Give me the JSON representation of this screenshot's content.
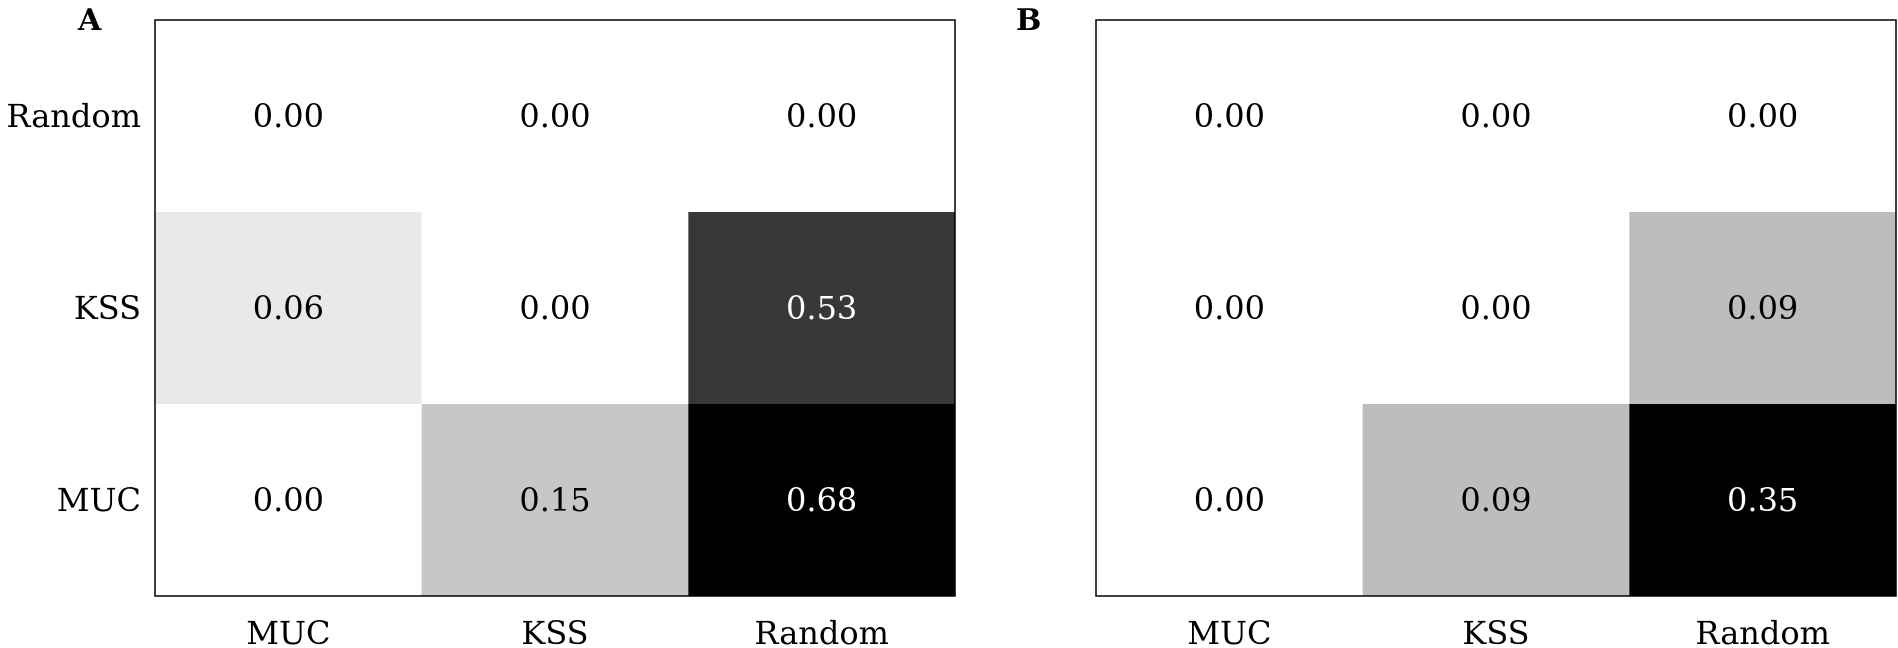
{
  "chart_data": [
    {
      "type": "heatmap",
      "panel_label": "A",
      "x_categories": [
        "MUC",
        "KSS",
        "Random"
      ],
      "y_categories": [
        "Random",
        "KSS",
        "MUC"
      ],
      "values": [
        [
          0.0,
          0.0,
          0.0
        ],
        [
          0.06,
          0.0,
          0.53
        ],
        [
          0.0,
          0.15,
          0.68
        ]
      ],
      "value_labels": [
        [
          "0.00",
          "0.00",
          "0.00"
        ],
        [
          "0.06",
          "0.00",
          "0.53"
        ],
        [
          "0.00",
          "0.15",
          "0.68"
        ]
      ],
      "color_range": [
        0,
        0.68
      ],
      "colormap": "greys",
      "legend": false,
      "grid": false
    },
    {
      "type": "heatmap",
      "panel_label": "B",
      "x_categories": [
        "MUC",
        "KSS",
        "Random"
      ],
      "y_categories": [
        "Random",
        "KSS",
        "MUC"
      ],
      "values": [
        [
          0.0,
          0.0,
          0.0
        ],
        [
          0.0,
          0.0,
          0.09
        ],
        [
          0.0,
          0.09,
          0.35
        ]
      ],
      "value_labels": [
        [
          "0.00",
          "0.00",
          "0.00"
        ],
        [
          "0.00",
          "0.00",
          "0.09"
        ],
        [
          "0.00",
          "0.09",
          "0.35"
        ]
      ],
      "color_range": [
        0,
        0.35
      ],
      "colormap": "greys",
      "legend": false,
      "grid": false
    }
  ]
}
